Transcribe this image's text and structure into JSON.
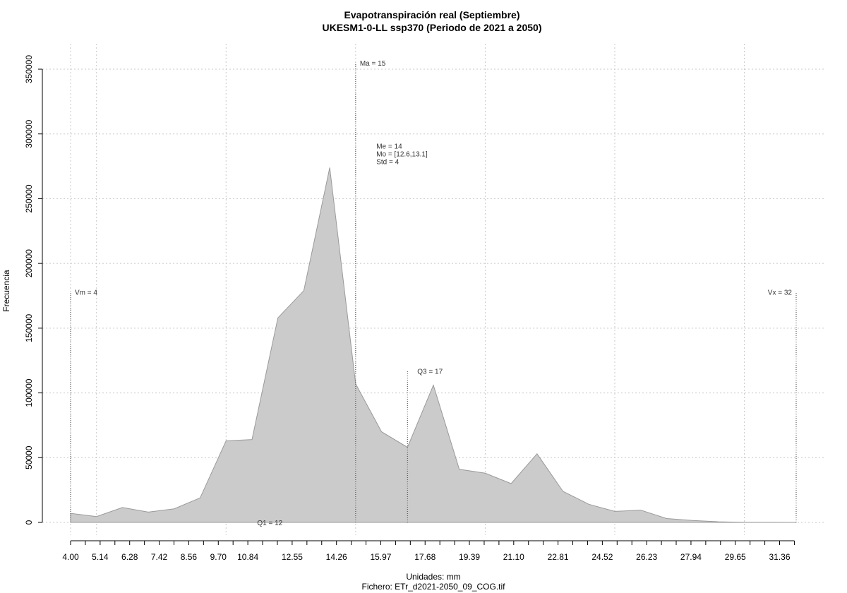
{
  "chart_data": {
    "type": "area",
    "title": "Evapotranspiración real (Septiembre)",
    "subtitle": "UKESM1-0-LL ssp370 (Periodo de 2021 a 2050)",
    "xlabel": "Unidades: mm",
    "ylabel": "Frecuencia",
    "footer": "Fichero: ETr_d2021-2050_09_COG.tif",
    "xlim": [
      4.0,
      32.0
    ],
    "ylim": [
      0,
      350000
    ],
    "y_ticks": [
      0,
      50000,
      100000,
      150000,
      200000,
      250000,
      300000,
      350000
    ],
    "x_ticks_labeled": [
      "4.00",
      "5.14",
      "6.28",
      "7.42",
      "8.56",
      "9.70",
      "10.84",
      "12.55",
      "14.26",
      "15.97",
      "17.68",
      "19.39",
      "21.10",
      "22.81",
      "24.52",
      "26.23",
      "27.94",
      "29.65",
      "31.36"
    ],
    "x_ticks_minor": [
      4.57,
      5.71,
      6.85,
      7.99,
      9.13,
      10.27,
      11.41,
      11.98,
      13.12,
      13.69,
      14.83,
      15.4,
      16.54,
      17.11,
      18.25,
      18.82,
      19.96,
      20.53,
      21.67,
      22.24,
      23.38,
      23.95,
      25.09,
      25.66,
      26.8,
      27.37,
      28.51,
      29.08,
      30.22,
      30.79,
      31.93
    ],
    "grid_x": [
      4.0,
      5.0,
      10.0,
      15.0,
      20.0,
      25.0,
      30.0
    ],
    "grid": true,
    "fill_color": "#cbcbcb",
    "edge_color": "#9a9a9a",
    "x": [
      4.0,
      5.0,
      6.0,
      7.0,
      8.0,
      9.0,
      10.0,
      11.0,
      12.0,
      13.0,
      14.0,
      15.0,
      16.0,
      17.0,
      18.0,
      19.0,
      20.0,
      21.0,
      22.0,
      23.0,
      24.0,
      25.0,
      26.0,
      27.0,
      28.0,
      29.0,
      30.0,
      31.0,
      32.0
    ],
    "values": [
      7000,
      4500,
      11500,
      8000,
      10500,
      19000,
      63000,
      64000,
      158000,
      179000,
      274000,
      107000,
      70000,
      58000,
      106000,
      41000,
      38000,
      30000,
      53000,
      24000,
      14000,
      8500,
      9500,
      3000,
      1500,
      500,
      100,
      50,
      0
    ],
    "annotations": {
      "ma": {
        "label": "Ma = 15",
        "x": 15.0,
        "y_top": 355000
      },
      "me_block": {
        "lines": [
          "Me = 14",
          "Mo = [12.6,13.1]",
          "Std = 4"
        ],
        "x": 15.8,
        "y": 292000
      },
      "vm": {
        "label": "Vm = 4",
        "x": 4.0,
        "y_top": 178000
      },
      "vx": {
        "label": "Vx = 32",
        "x": 32.0,
        "y_top": 178000
      },
      "q1": {
        "label": "Q1 = 12",
        "x": 11.2,
        "y": 0
      },
      "q3": {
        "label": "Q3 = 17",
        "x": 17.0,
        "y_top": 117000
      }
    }
  }
}
